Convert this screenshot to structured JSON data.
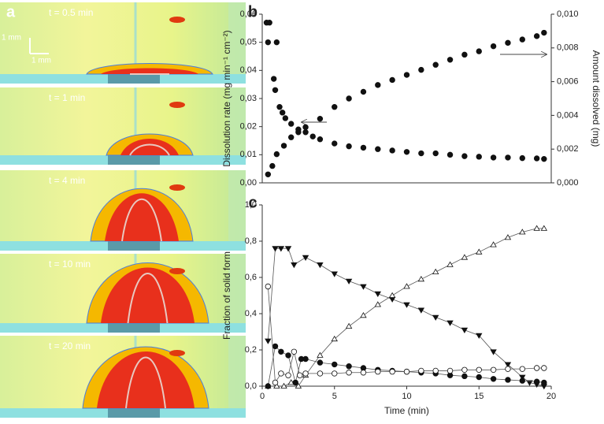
{
  "chart_data": [
    {
      "type": "image",
      "panel_label": "a",
      "scale_labels": [
        "1 mm",
        "1 mm"
      ],
      "frame_labels": [
        "t = 0.5 min",
        "t = 1 min",
        "t = 4 min",
        "t = 10 min",
        "t = 20 min"
      ]
    },
    {
      "type": "scatter",
      "panel_label": "b",
      "y_label": "Dissolution rate (mg min⁻¹ cm⁻²)",
      "y2_label": "Amount dissolved (mg)",
      "xlim": [
        0,
        20
      ],
      "ylim": [
        0,
        0.06
      ],
      "yticks": [
        {
          "value": 0,
          "label": "0,00"
        },
        {
          "value": 0.01,
          "label": "0,01"
        },
        {
          "value": 0.02,
          "label": "0,02"
        },
        {
          "value": 0.03,
          "label": "0,03"
        },
        {
          "value": 0.04,
          "label": "0,04"
        },
        {
          "value": 0.05,
          "label": "0,05"
        },
        {
          "value": 0.06,
          "label": "0,06"
        }
      ],
      "y2lim": [
        0,
        0.01
      ],
      "y2ticks": [
        {
          "value": 0,
          "label": "0,000"
        },
        {
          "value": 0.002,
          "label": "0,002"
        },
        {
          "value": 0.004,
          "label": "0,004"
        },
        {
          "value": 0.006,
          "label": "0,006"
        },
        {
          "value": 0.008,
          "label": "0,008"
        },
        {
          "value": 0.01,
          "label": "0,010"
        }
      ],
      "series": [
        {
          "color": "#111111",
          "marker": "circle-filled",
          "x": [
            0.3,
            0.4,
            0.5,
            0.8,
            0.9,
            1.0,
            1.2,
            1.4,
            1.6,
            2,
            2.5,
            3,
            3.5,
            4,
            5,
            6,
            7,
            8,
            9,
            10,
            11,
            12,
            13,
            14,
            15,
            16,
            17,
            18,
            19,
            19.5
          ],
          "values": [
            0.057,
            0.05,
            0.057,
            0.037,
            0.033,
            0.05,
            0.027,
            0.025,
            0.023,
            0.021,
            0.019,
            0.018,
            0.0165,
            0.0155,
            0.014,
            0.013,
            0.0125,
            0.012,
            0.0115,
            0.011,
            0.0105,
            0.0105,
            0.01,
            0.0095,
            0.0093,
            0.009,
            0.009,
            0.0088,
            0.0087,
            0.0085
          ]
        },
        {
          "color": "#111111",
          "marker": "circle-filled",
          "axis": "y2",
          "x": [
            0.4,
            0.7,
            1,
            1.5,
            2,
            2.5,
            3,
            4,
            5,
            6,
            7,
            8,
            9,
            10,
            11,
            12,
            13,
            14,
            15,
            16,
            17,
            18,
            19,
            19.5
          ],
          "values": [
            0.0005,
            0.001,
            0.0017,
            0.0022,
            0.0027,
            0.003,
            0.0033,
            0.0038,
            0.0045,
            0.005,
            0.0054,
            0.0058,
            0.0061,
            0.0064,
            0.0067,
            0.007,
            0.0073,
            0.0076,
            0.0078,
            0.0081,
            0.0083,
            0.0085,
            0.0087,
            0.0089
          ]
        }
      ]
    },
    {
      "type": "scatter",
      "panel_label": "c",
      "line": true,
      "x_label": "Time (min)",
      "y_label": "Fraction of solid form",
      "xlim": [
        0,
        20
      ],
      "xticks": [
        0,
        5,
        10,
        15,
        20
      ],
      "ylim": [
        0,
        1
      ],
      "yticks": [
        {
          "value": 0,
          "label": "0,0"
        },
        {
          "value": 0.2,
          "label": "0,2"
        },
        {
          "value": 0.4,
          "label": "0,4"
        },
        {
          "value": 0.6,
          "label": "0,6"
        },
        {
          "value": 0.8,
          "label": "0,8"
        },
        {
          "value": 1,
          "label": "1,0"
        }
      ],
      "series": [
        {
          "color": "#111111",
          "marker": "triangle-down-filled",
          "x": [
            0.4,
            0.9,
            1.3,
            1.8,
            2.2,
            3,
            4,
            5,
            6,
            7,
            8,
            9,
            10,
            11,
            12,
            13,
            14,
            15,
            16,
            17,
            18,
            18.5,
            19,
            19.5
          ],
          "values": [
            0.25,
            0.76,
            0.76,
            0.76,
            0.67,
            0.71,
            0.67,
            0.62,
            0.58,
            0.55,
            0.51,
            0.48,
            0.45,
            0.42,
            0.38,
            0.35,
            0.31,
            0.28,
            0.19,
            0.12,
            0.05,
            0.02,
            0.01,
            0
          ]
        },
        {
          "color": "#111111",
          "marker": "triangle-up-open",
          "x": [
            0.4,
            1,
            1.5,
            2,
            2.5,
            3,
            4,
            5,
            6,
            7,
            8,
            9,
            10,
            11,
            12,
            13,
            14,
            15,
            16,
            17,
            18,
            19,
            19.5
          ],
          "values": [
            0,
            0,
            0,
            0.02,
            0,
            0.06,
            0.17,
            0.26,
            0.33,
            0.39,
            0.45,
            0.5,
            0.55,
            0.59,
            0.63,
            0.67,
            0.71,
            0.74,
            0.78,
            0.82,
            0.85,
            0.87,
            0.87
          ]
        },
        {
          "color": "#111111",
          "marker": "circle-filled",
          "x": [
            0.4,
            0.9,
            1.3,
            1.8,
            2.3,
            2.7,
            3,
            4,
            5,
            6,
            7,
            8,
            9,
            10,
            11,
            12,
            13,
            14,
            15,
            16,
            17,
            18,
            19,
            19.5
          ],
          "values": [
            0,
            0.22,
            0.19,
            0.17,
            0.02,
            0.15,
            0.15,
            0.13,
            0.12,
            0.11,
            0.1,
            0.09,
            0.085,
            0.08,
            0.075,
            0.07,
            0.06,
            0.055,
            0.05,
            0.04,
            0.035,
            0.03,
            0.025,
            0.02
          ]
        },
        {
          "color": "#111111",
          "marker": "circle-open",
          "x": [
            0.4,
            0.9,
            1.3,
            1.8,
            2.2,
            2.6,
            3,
            4,
            5,
            6,
            7,
            8,
            9,
            10,
            11,
            12,
            13,
            14,
            15,
            16,
            17,
            18,
            19,
            19.5
          ],
          "values": [
            0.55,
            0.02,
            0.07,
            0.06,
            0.19,
            0.06,
            0.07,
            0.07,
            0.07,
            0.075,
            0.075,
            0.08,
            0.08,
            0.08,
            0.085,
            0.085,
            0.085,
            0.09,
            0.09,
            0.09,
            0.095,
            0.095,
            0.1,
            0.1
          ]
        }
      ]
    }
  ]
}
